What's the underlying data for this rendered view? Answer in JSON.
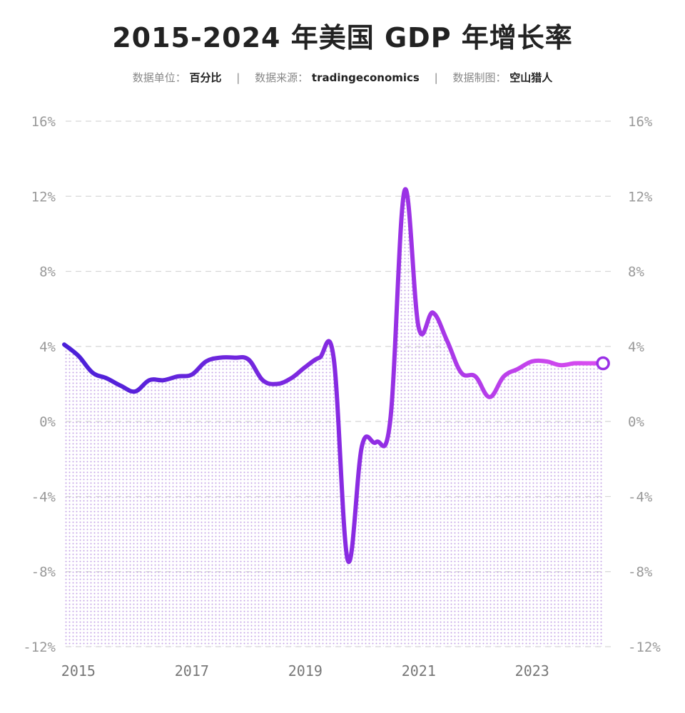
{
  "header": {
    "title": "2015-2024 年美国 GDP 年增长率",
    "unit_label": "数据单位：",
    "unit_value": "百分比",
    "source_label": "数据来源：",
    "source_value": "tradingeconomics",
    "author_label": "数据制图：",
    "author_value": "空山猎人",
    "separator": "|"
  },
  "chart_data": {
    "type": "area",
    "title": "2015-2024 年美国 GDP 年增长率",
    "xlabel": "",
    "ylabel": "",
    "ylim": [
      -12,
      16
    ],
    "xlim": [
      2014.75,
      2024.5
    ],
    "yticks": [
      16,
      12,
      8,
      4,
      0,
      -4,
      -8,
      -12
    ],
    "ytick_labels": [
      "16%",
      "12%",
      "8%",
      "4%",
      "0%",
      "-4%",
      "-8%",
      "-12%"
    ],
    "xticks": [
      2015,
      2017,
      2019,
      2021,
      2023
    ],
    "xtick_labels": [
      "2015",
      "2017",
      "2019",
      "2021",
      "2023"
    ],
    "grid": true,
    "y_axis_both_sides": true,
    "colors": {
      "line_start": "#4a1fd8",
      "line_end": "#d84cf0",
      "fill_dots": "#c9a6e4",
      "grid": "#d6d6d6"
    },
    "series": [
      {
        "x": [
          2014.75,
          2015.0,
          2015.25,
          2015.5,
          2015.75,
          2016.0,
          2016.25,
          2016.5,
          2016.75,
          2017.0,
          2017.25,
          2017.5,
          2017.75,
          2018.0,
          2018.25,
          2018.5,
          2018.75,
          2019.0,
          2019.25,
          2019.5,
          2019.75,
          2020.0,
          2020.25,
          2020.5,
          2020.75,
          2021.0,
          2021.25,
          2021.5,
          2021.75,
          2022.0,
          2022.25,
          2022.5,
          2022.75,
          2023.0,
          2023.25,
          2023.5,
          2023.75,
          2024.0,
          2024.25
        ],
        "values": [
          4.1,
          3.5,
          2.6,
          2.3,
          1.9,
          1.6,
          2.2,
          2.2,
          2.4,
          2.5,
          3.2,
          3.4,
          3.4,
          3.3,
          2.2,
          2.0,
          2.3,
          2.9,
          3.4,
          3.4,
          -7.4,
          -1.3,
          -1.1,
          0.1,
          12.3,
          5.0,
          5.8,
          4.3,
          2.6,
          2.4,
          1.3,
          2.4,
          2.8,
          3.2,
          3.2,
          3.0,
          3.1,
          3.1,
          3.1
        ]
      }
    ]
  }
}
